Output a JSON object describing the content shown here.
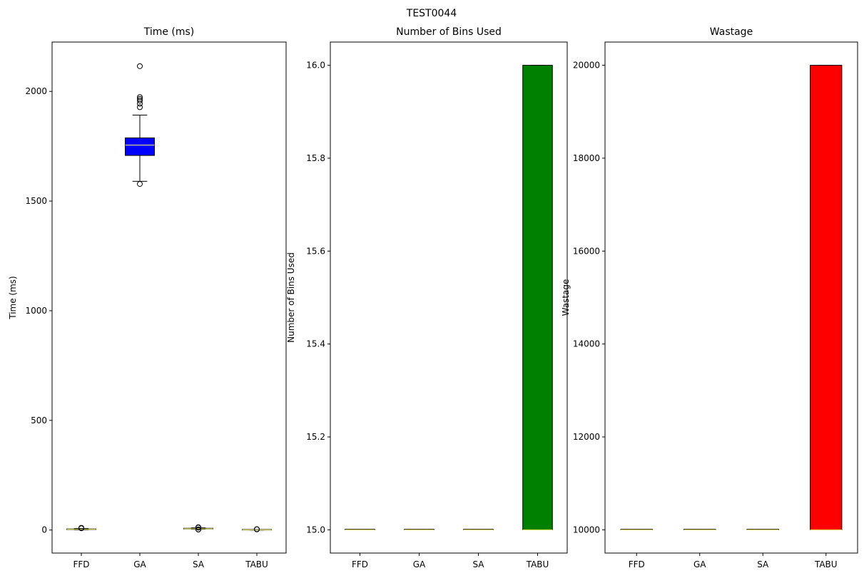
{
  "figure": {
    "suptitle": "TEST0044"
  },
  "chart_data": [
    {
      "type": "box",
      "title": "Time (ms)",
      "xlabel": "",
      "ylabel": "Time (ms)",
      "categories": [
        "FFD",
        "GA",
        "SA",
        "TABU"
      ],
      "ylim": [
        -105,
        2225
      ],
      "yticks": [
        0,
        500,
        1000,
        1500,
        2000
      ],
      "ytick_labels": [
        "0",
        "500",
        "1000",
        "1500",
        "2000"
      ],
      "fill_color": "#0000ff",
      "boxes": [
        {
          "category": "FFD",
          "whislo": 1,
          "q1": 2,
          "med": 3,
          "q3": 5,
          "whishi": 7,
          "fliers": [
            8,
            9,
            10
          ]
        },
        {
          "category": "GA",
          "whislo": 1590,
          "q1": 1708,
          "med": 1755,
          "q3": 1788,
          "whishi": 1892,
          "fliers": [
            1578,
            1928,
            1944,
            1958,
            1966,
            1974,
            2115
          ]
        },
        {
          "category": "SA",
          "whislo": 4,
          "q1": 5,
          "med": 6,
          "q3": 8,
          "whishi": 10,
          "fliers": [
            2,
            3,
            11,
            12,
            13
          ]
        },
        {
          "category": "TABU",
          "whislo": 0,
          "q1": 0,
          "med": 1,
          "q3": 1,
          "whishi": 2,
          "fliers": [
            3,
            4
          ]
        }
      ],
      "grid": false
    },
    {
      "type": "box",
      "title": "Number of Bins Used",
      "xlabel": "",
      "ylabel": "Number of Bins Used",
      "categories": [
        "FFD",
        "GA",
        "SA",
        "TABU"
      ],
      "ylim": [
        14.95,
        16.05
      ],
      "yticks": [
        15.0,
        15.2,
        15.4,
        15.6,
        15.8,
        16.0
      ],
      "ytick_labels": [
        "15.0",
        "15.2",
        "15.4",
        "15.6",
        "15.8",
        "16.0"
      ],
      "fill_color": "#008000",
      "boxes": [
        {
          "category": "FFD",
          "whislo": 15,
          "q1": 15,
          "med": 15,
          "q3": 15,
          "whishi": 15,
          "fliers": []
        },
        {
          "category": "GA",
          "whislo": 15,
          "q1": 15,
          "med": 15,
          "q3": 15,
          "whishi": 15,
          "fliers": []
        },
        {
          "category": "SA",
          "whislo": 15,
          "q1": 15,
          "med": 15,
          "q3": 15,
          "whishi": 15,
          "fliers": []
        },
        {
          "category": "TABU",
          "whislo": 15,
          "q1": 15,
          "med": 15,
          "q3": 16,
          "whishi": 16,
          "fliers": []
        }
      ],
      "grid": false
    },
    {
      "type": "box",
      "title": "Wastage",
      "xlabel": "",
      "ylabel": "Wastage",
      "categories": [
        "FFD",
        "GA",
        "SA",
        "TABU"
      ],
      "ylim": [
        9500,
        20500
      ],
      "yticks": [
        10000,
        12000,
        14000,
        16000,
        18000,
        20000
      ],
      "ytick_labels": [
        "10000",
        "12000",
        "14000",
        "16000",
        "18000",
        "20000"
      ],
      "fill_color": "#ff0000",
      "boxes": [
        {
          "category": "FFD",
          "whislo": 10000,
          "q1": 10000,
          "med": 10000,
          "q3": 10000,
          "whishi": 10000,
          "fliers": []
        },
        {
          "category": "GA",
          "whislo": 10000,
          "q1": 10000,
          "med": 10000,
          "q3": 10000,
          "whishi": 10000,
          "fliers": []
        },
        {
          "category": "SA",
          "whislo": 10000,
          "q1": 10000,
          "med": 10000,
          "q3": 10000,
          "whishi": 10000,
          "fliers": []
        },
        {
          "category": "TABU",
          "whislo": 10000,
          "q1": 10000,
          "med": 10000,
          "q3": 20000,
          "whishi": 20000,
          "fliers": []
        }
      ],
      "grid": false
    }
  ],
  "style": {
    "median_color": "#ffff66",
    "edge_color": "#000000"
  }
}
